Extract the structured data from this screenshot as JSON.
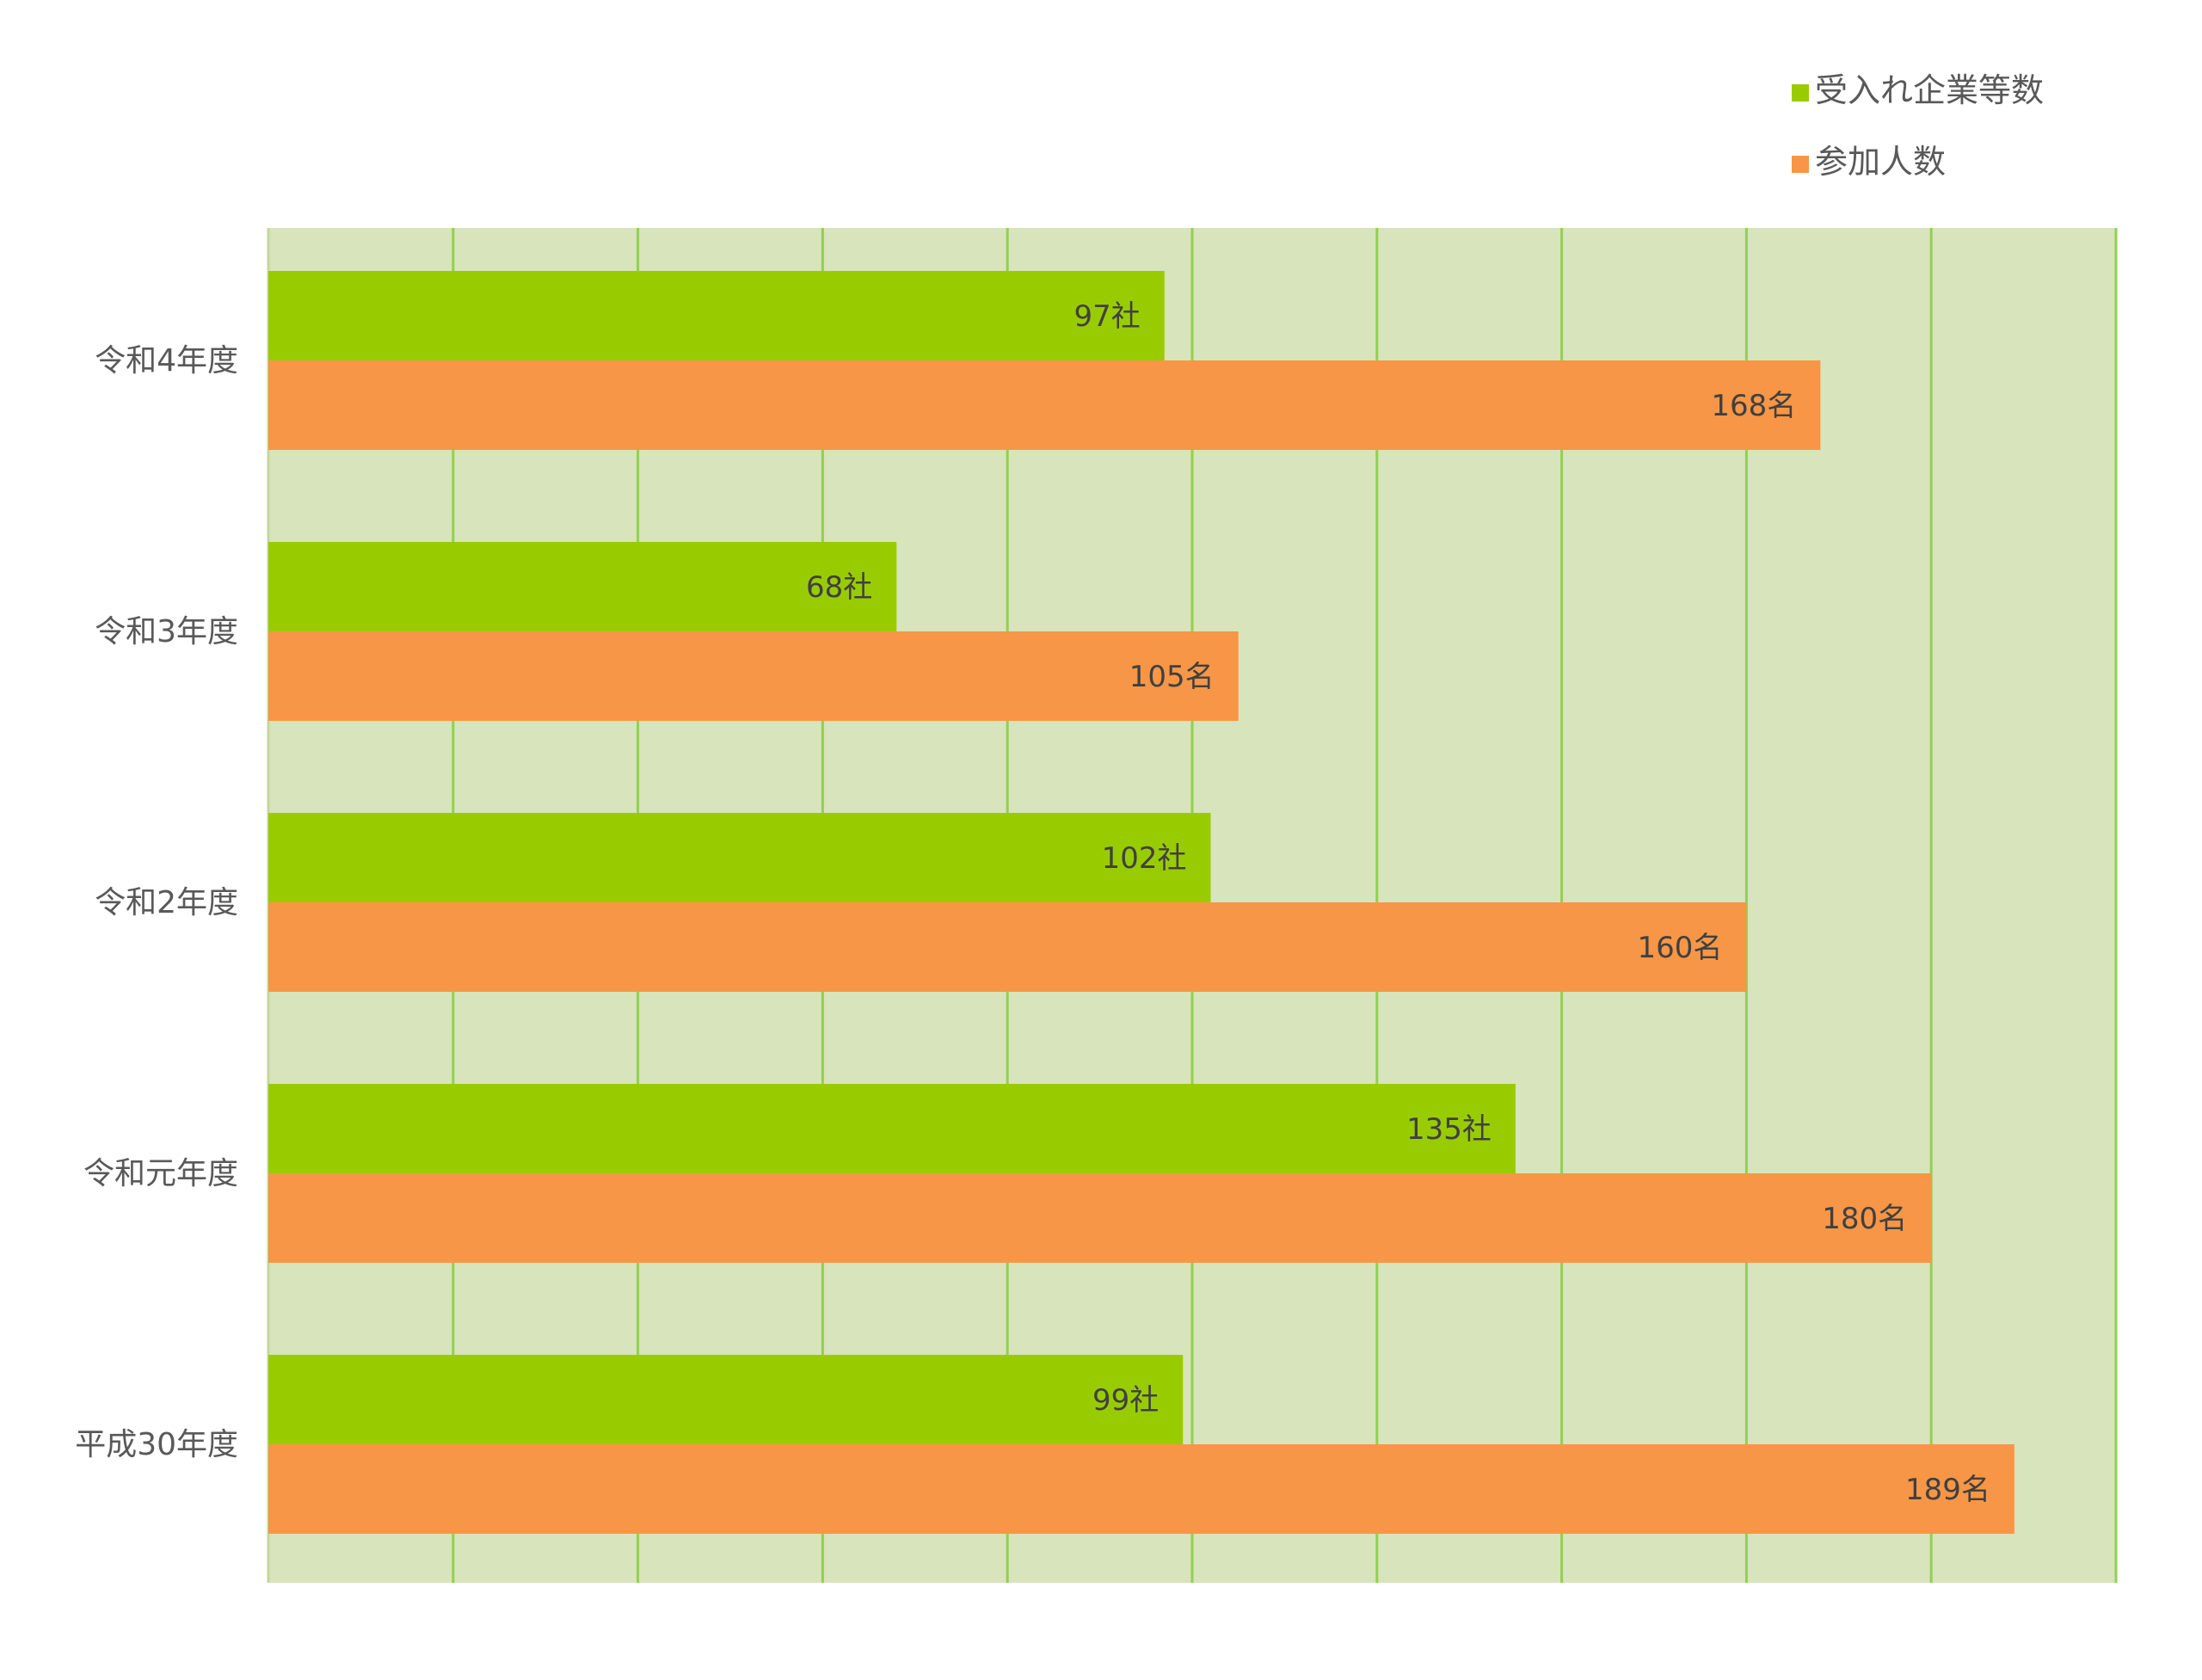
{
  "chart_data": {
    "type": "bar",
    "orientation": "horizontal",
    "title": "",
    "xlabel": "",
    "ylabel": "",
    "categories": [
      "令和4年度",
      "令和3年度",
      "令和2年度",
      "令和元年度",
      "平成30年度"
    ],
    "series": [
      {
        "name": "受入れ企業等数",
        "color": "#99cc00",
        "unit": "社",
        "values": [
          97,
          68,
          102,
          135,
          99
        ]
      },
      {
        "name": "参加人数",
        "color": "#f79646",
        "unit": "名",
        "values": [
          168,
          105,
          160,
          180,
          189
        ]
      }
    ],
    "xlim": [
      0,
      200
    ],
    "x_gridlines": [
      0,
      20,
      40,
      60,
      80,
      100,
      120,
      140,
      160,
      180,
      200
    ],
    "x_tick_labels_shown": false,
    "grid": true,
    "legend_position": "top-right",
    "plot_background": "#d8e4bc",
    "gridline_color": "#92d050"
  }
}
